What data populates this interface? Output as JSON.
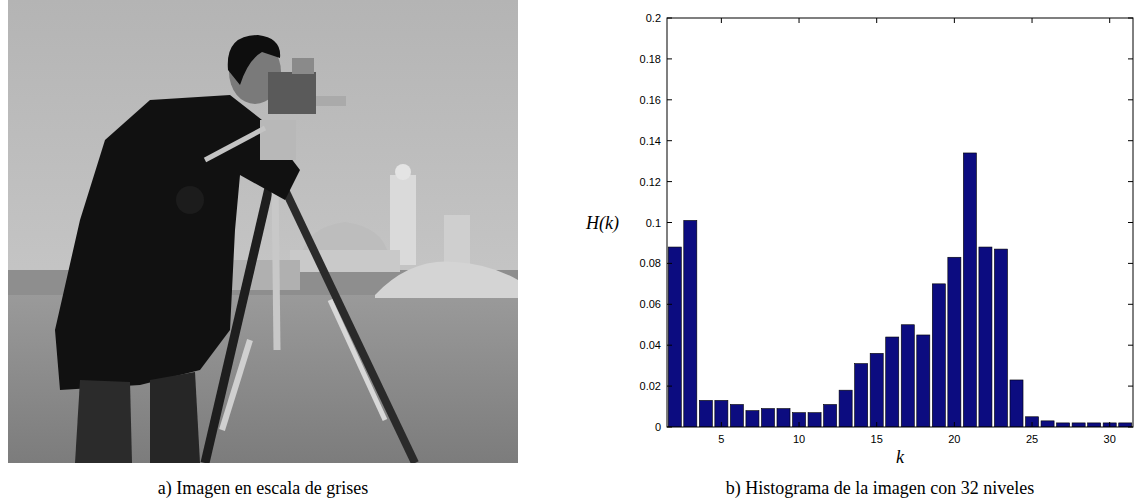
{
  "image": {
    "caption": "a) Imagen en escala de grises"
  },
  "chart_data": {
    "type": "bar",
    "title": "b) Histograma de la imagen con 32 niveles",
    "xlabel": "k",
    "ylabel": "H(k)",
    "x": [
      2,
      3,
      4,
      5,
      6,
      7,
      8,
      9,
      10,
      11,
      12,
      13,
      14,
      15,
      16,
      17,
      18,
      19,
      20,
      21,
      22,
      23,
      24,
      25,
      26,
      27,
      28,
      29,
      30,
      31
    ],
    "values": [
      0.088,
      0.101,
      0.013,
      0.013,
      0.011,
      0.008,
      0.009,
      0.009,
      0.007,
      0.007,
      0.011,
      0.018,
      0.031,
      0.036,
      0.044,
      0.05,
      0.045,
      0.07,
      0.083,
      0.134,
      0.088,
      0.087,
      0.023,
      0.005,
      0.003,
      0.002,
      0.002,
      0.002,
      0.002,
      0.002
    ],
    "color": "#0c0c80",
    "xlim": [
      1.5,
      31.5
    ],
    "xticks": [
      5,
      10,
      15,
      20,
      25,
      30
    ],
    "ylim": [
      0,
      0.2
    ],
    "yticks": [
      0,
      0.02,
      0.04,
      0.06,
      0.08,
      0.1,
      0.12,
      0.14,
      0.16,
      0.18,
      0.2
    ],
    "grid": false
  }
}
